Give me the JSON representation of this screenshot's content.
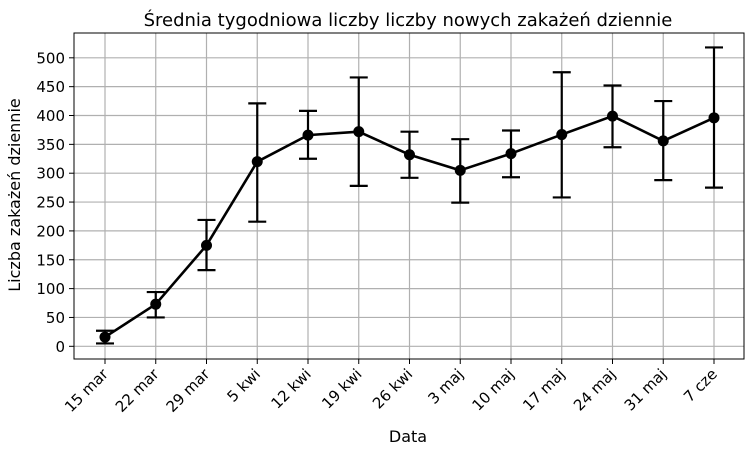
{
  "chart_data": {
    "type": "line",
    "title": "Średnia tygodniowa liczby liczby nowych zakażeń dziennie",
    "xlabel": "Data",
    "ylabel": "Liczba zakażeń dziennie",
    "categories": [
      "15 mar",
      "22 mar",
      "29 mar",
      "5 kwi",
      "12 kwi",
      "19 kwi",
      "26 kwi",
      "3 maj",
      "10 maj",
      "17 maj",
      "24 maj",
      "31 maj",
      "7 cze"
    ],
    "series": [
      {
        "values": [
          16,
          73,
          175,
          320,
          366,
          372,
          332,
          305,
          334,
          367,
          399,
          356,
          396
        ],
        "err_low": [
          5,
          50,
          132,
          216,
          325,
          278,
          292,
          249,
          293,
          258,
          345,
          288,
          275
        ],
        "err_high": [
          27,
          94,
          219,
          421,
          408,
          466,
          372,
          359,
          374,
          475,
          452,
          425,
          518
        ]
      }
    ],
    "ylim": [
      -22,
      543
    ],
    "yticks": [
      0,
      50,
      100,
      150,
      200,
      250,
      300,
      350,
      400,
      450,
      500
    ],
    "grid": true,
    "colors": {
      "line": "#000000",
      "grid": "#b0b0b0",
      "background": "#ffffff"
    }
  }
}
